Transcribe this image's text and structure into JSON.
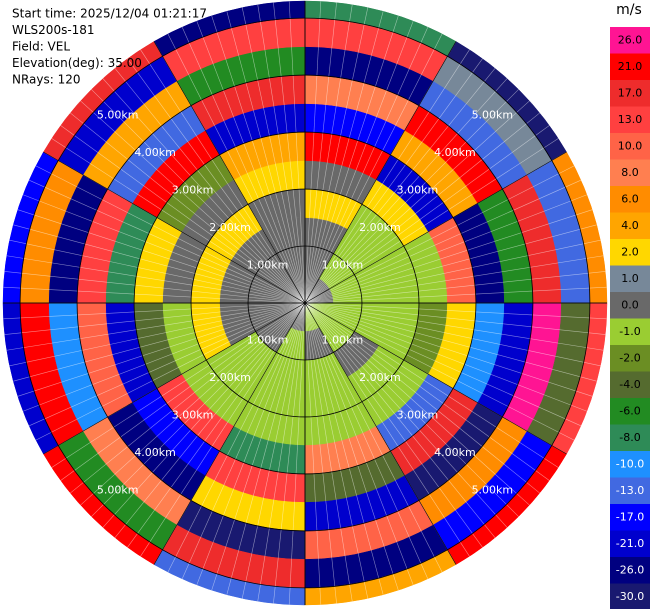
{
  "chart_data": {
    "type": "ppi",
    "info_lines": [
      "Start time: 2025/12/04 01:21:17",
      "WLS200s-181",
      "Field: VEL",
      "Elevation(deg): 35.00",
      "NRays: 120"
    ],
    "nrays": 120,
    "unit": "m/s",
    "range_rings": [
      {
        "value": 1,
        "label": "1.00km"
      },
      {
        "value": 2,
        "label": "2.00km"
      },
      {
        "value": 3,
        "label": "3.00km"
      },
      {
        "value": 4,
        "label": "4.00km"
      },
      {
        "value": 5,
        "label": "5.00km"
      }
    ],
    "max_range_km": 5.3,
    "gate_edges_km": [
      0,
      0.5,
      1,
      1.5,
      2,
      2.5,
      3,
      3.5,
      4,
      4.5,
      5,
      5.3
    ],
    "azimuth_edges_deg": [
      0,
      30,
      60,
      90,
      120,
      150,
      180,
      210,
      240,
      270,
      300,
      330,
      360
    ],
    "cells": [
      [
        0.5,
        0.5,
        0.5,
        3,
        0.5,
        22,
        -15,
        9,
        -25,
        14,
        -8
      ],
      [
        0.5,
        -0.5,
        -0.5,
        -0.5,
        3,
        -18,
        5,
        24,
        -11,
        1.5,
        -28
      ],
      [
        0.5,
        -0.5,
        -0.5,
        -0.5,
        -0.5,
        11,
        -22,
        -5,
        18,
        -13,
        7
      ],
      [
        -0.5,
        -0.5,
        -0.5,
        -0.5,
        -1.5,
        3,
        -9,
        -19,
        27,
        -3,
        15
      ],
      [
        -0.5,
        -0.5,
        0.5,
        -0.5,
        -0.5,
        -12,
        20,
        -27,
        6,
        -16,
        23
      ],
      [
        -0.5,
        0.5,
        -0.5,
        -0.5,
        -0.5,
        8,
        -2.5,
        -20,
        12,
        -24,
        4.5
      ],
      [
        0.5,
        -0.5,
        -0.5,
        -0.5,
        -0.5,
        -7,
        16,
        2.5,
        -29,
        19,
        -11
      ],
      [
        0.5,
        0.5,
        -0.5,
        -0.5,
        -0.5,
        14,
        -14,
        -23,
        9,
        -5,
        25
      ],
      [
        0.5,
        0.5,
        0.5,
        3,
        -0.5,
        -3,
        -18,
        11,
        -9,
        22,
        -20
      ],
      [
        0.5,
        0.5,
        0.5,
        3,
        0.5,
        2.5,
        -7,
        15,
        -26,
        7,
        -15
      ],
      [
        0.5,
        0.5,
        0.5,
        3,
        0.5,
        -1.5,
        25,
        -12,
        5,
        -21,
        18
      ],
      [
        0.5,
        0.5,
        0.5,
        0.5,
        3,
        4.5,
        -19,
        19,
        -6,
        13,
        -24
      ]
    ],
    "colorbar": [
      {
        "value": 26,
        "label": "26.0",
        "color": "#ff1493"
      },
      {
        "value": 21,
        "label": "21.0",
        "color": "#ff0000"
      },
      {
        "value": 17,
        "label": "17.0",
        "color": "#ee2c2c"
      },
      {
        "value": 13,
        "label": "13.0",
        "color": "#ff4040"
      },
      {
        "value": 10,
        "label": "10.0",
        "color": "#ff6347"
      },
      {
        "value": 8,
        "label": "8.0",
        "color": "#ff7f50"
      },
      {
        "value": 6,
        "label": "6.0",
        "color": "#ff8c00"
      },
      {
        "value": 4,
        "label": "4.0",
        "color": "#ffa500"
      },
      {
        "value": 2,
        "label": "2.0",
        "color": "#ffd700"
      },
      {
        "value": 1,
        "label": "1.0",
        "color": "#778899"
      },
      {
        "value": 0,
        "label": "0.0",
        "color": "#696969"
      },
      {
        "value": -1,
        "label": "-1.0",
        "color": "#9acd32"
      },
      {
        "value": -2,
        "label": "-2.0",
        "color": "#6b8e23"
      },
      {
        "value": -4,
        "label": "-4.0",
        "color": "#556b2f"
      },
      {
        "value": -6,
        "label": "-6.0",
        "color": "#228b22"
      },
      {
        "value": -8,
        "label": "-8.0",
        "color": "#2e8b57"
      },
      {
        "value": -10,
        "label": "-10.0",
        "color": "#1e90ff"
      },
      {
        "value": -13,
        "label": "-13.0",
        "color": "#4169e1"
      },
      {
        "value": -17,
        "label": "-17.0",
        "color": "#0000ff"
      },
      {
        "value": -21,
        "label": "-21.0",
        "color": "#0000cd"
      },
      {
        "value": -26,
        "label": "-26.0",
        "color": "#000080"
      },
      {
        "value": -30,
        "label": "-30.0",
        "color": "#191970"
      }
    ]
  }
}
